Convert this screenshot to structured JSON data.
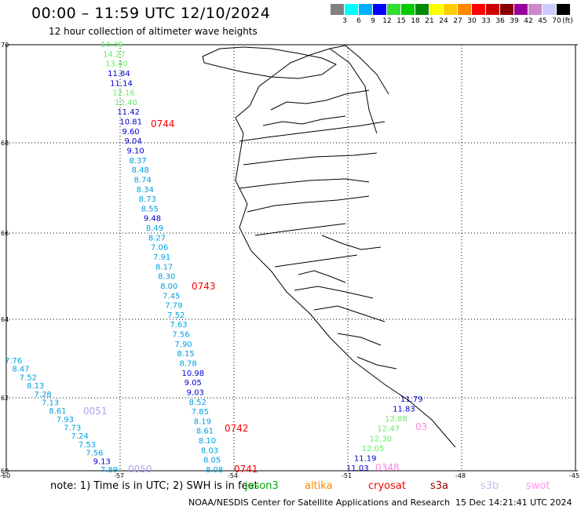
{
  "header": {
    "title": "00:00 – 11:59 UTC 12/10/2024",
    "subtitle": "12 hour collection of altimeter wave heights"
  },
  "colorbar": {
    "unit_label": "(ft)",
    "colors": [
      "#808080",
      "#00ffff",
      "#00b0ff",
      "#0000ff",
      "#33dd33",
      "#00cc00",
      "#008800",
      "#ffff00",
      "#ffcc00",
      "#ff8800",
      "#ff0000",
      "#cc0000",
      "#880000",
      "#990099",
      "#cc88cc",
      "#ccccff",
      "#000000"
    ],
    "ticks": [
      "3",
      "6",
      "9",
      "12",
      "15",
      "18",
      "21",
      "24",
      "27",
      "30",
      "33",
      "36",
      "39",
      "42",
      "45",
      "70"
    ]
  },
  "map": {
    "lat_labels": [
      "70",
      "68",
      "66",
      "64",
      "62",
      "60"
    ],
    "lon_labels": [
      "-60",
      "-57",
      "-54",
      "-51",
      "-48",
      "-45"
    ],
    "passes": [
      {
        "label": "0744",
        "color": "#ff0000"
      },
      {
        "label": "0743",
        "color": "#ff0000"
      },
      {
        "label": "0742",
        "color": "#ff0000"
      },
      {
        "label": "0741",
        "color": "#ff0000"
      },
      {
        "label": "0051",
        "color": "#b0a0f0"
      },
      {
        "label": "0050",
        "color": "#b0a0f0"
      },
      {
        "label": "0348",
        "color": "#ff88dd"
      },
      {
        "label": "03",
        "color": "#ff88dd"
      }
    ],
    "track_main": [
      {
        "v": "14.39",
        "c": "#66ee66"
      },
      {
        "v": "14.27",
        "c": "#66ee66"
      },
      {
        "v": "13.40",
        "c": "#66ee66"
      },
      {
        "v": "11.84",
        "c": "#0000cc"
      },
      {
        "v": "11.14",
        "c": "#0000cc"
      },
      {
        "v": "12.16",
        "c": "#66ee66"
      },
      {
        "v": "12.40",
        "c": "#66ee66"
      },
      {
        "v": "11.42",
        "c": "#0000cc"
      },
      {
        "v": "10.81",
        "c": "#0000cc"
      },
      {
        "v": "9.60",
        "c": "#0000cc"
      },
      {
        "v": "9.04",
        "c": "#0000cc"
      },
      {
        "v": "9.10",
        "c": "#0000cc"
      },
      {
        "v": "8.37",
        "c": "#00a0e0"
      },
      {
        "v": "8.48",
        "c": "#00a0e0"
      },
      {
        "v": "8.74",
        "c": "#00a0e0"
      },
      {
        "v": "8.34",
        "c": "#00a0e0"
      },
      {
        "v": "8.73",
        "c": "#00a0e0"
      },
      {
        "v": "8.55",
        "c": "#00a0e0"
      },
      {
        "v": "9.48",
        "c": "#0000cc"
      },
      {
        "v": "8.49",
        "c": "#00a0e0"
      },
      {
        "v": "8.27",
        "c": "#00a0e0"
      },
      {
        "v": "7.06",
        "c": "#00a0e0"
      },
      {
        "v": "7.91",
        "c": "#00a0e0"
      },
      {
        "v": "8.17",
        "c": "#00a0e0"
      },
      {
        "v": "8.30",
        "c": "#00a0e0"
      },
      {
        "v": "8.00",
        "c": "#00a0e0"
      },
      {
        "v": "7.45",
        "c": "#00a0e0"
      },
      {
        "v": "7.79",
        "c": "#00a0e0"
      },
      {
        "v": "7.52",
        "c": "#00a0e0"
      },
      {
        "v": "7.63",
        "c": "#00a0e0"
      },
      {
        "v": "7.56",
        "c": "#00a0e0"
      },
      {
        "v": "7.90",
        "c": "#00a0e0"
      },
      {
        "v": "8.15",
        "c": "#00a0e0"
      },
      {
        "v": "8.78",
        "c": "#00a0e0"
      },
      {
        "v": "10.98",
        "c": "#0000cc"
      },
      {
        "v": "9.05",
        "c": "#0000cc"
      },
      {
        "v": "9.03",
        "c": "#0000cc"
      },
      {
        "v": "8.52",
        "c": "#00a0e0"
      },
      {
        "v": "7.85",
        "c": "#00a0e0"
      },
      {
        "v": "8.19",
        "c": "#00a0e0"
      },
      {
        "v": "8.61",
        "c": "#00a0e0"
      },
      {
        "v": "8.10",
        "c": "#00a0e0"
      },
      {
        "v": "8.03",
        "c": "#00a0e0"
      },
      {
        "v": "8.05",
        "c": "#00a0e0"
      },
      {
        "v": "8.08",
        "c": "#00a0e0"
      }
    ],
    "track_west": [
      {
        "v": "7.76",
        "c": "#00a0e0"
      },
      {
        "v": "8.47",
        "c": "#00a0e0"
      },
      {
        "v": "7.52",
        "c": "#00a0e0"
      },
      {
        "v": "8.13",
        "c": "#00a0e0"
      },
      {
        "v": "7.28",
        "c": "#00a0e0"
      },
      {
        "v": "7.13",
        "c": "#00a0e0"
      },
      {
        "v": "8.61",
        "c": "#00a0e0"
      },
      {
        "v": "7.93",
        "c": "#00a0e0"
      },
      {
        "v": "7.73",
        "c": "#00a0e0"
      },
      {
        "v": "7.24",
        "c": "#00a0e0"
      },
      {
        "v": "7.53",
        "c": "#00a0e0"
      },
      {
        "v": "7.56",
        "c": "#00a0e0"
      },
      {
        "v": "9.13",
        "c": "#0000cc"
      },
      {
        "v": "7.89",
        "c": "#00a0e0"
      }
    ],
    "track_east": [
      {
        "v": "11.79",
        "c": "#0000cc"
      },
      {
        "v": "11.83",
        "c": "#0000cc"
      },
      {
        "v": "12.88",
        "c": "#66ee66"
      },
      {
        "v": "12.47",
        "c": "#66ee66"
      },
      {
        "v": "12.30",
        "c": "#66ee66"
      },
      {
        "v": "12.05",
        "c": "#66ee66"
      },
      {
        "v": "11.19",
        "c": "#0000cc"
      },
      {
        "v": "11.03",
        "c": "#0000cc"
      }
    ]
  },
  "footer": {
    "note": "note:  1) Time is in UTC;  2) SWH is in feet",
    "legend": [
      {
        "label": "jason3",
        "color": "#00aa00"
      },
      {
        "label": "altika",
        "color": "#ff8800"
      },
      {
        "label": "cryosat",
        "color": "#ff0000"
      },
      {
        "label": "s3a",
        "color": "#990000"
      },
      {
        "label": "s3b",
        "color": "#ccbbee"
      },
      {
        "label": "swot",
        "color": "#ff99ee"
      }
    ],
    "credit": "NOAA/NESDIS Center for Satellite Applications and Research",
    "timestamp": "15 Dec 14:21:41 UTC 2024"
  }
}
